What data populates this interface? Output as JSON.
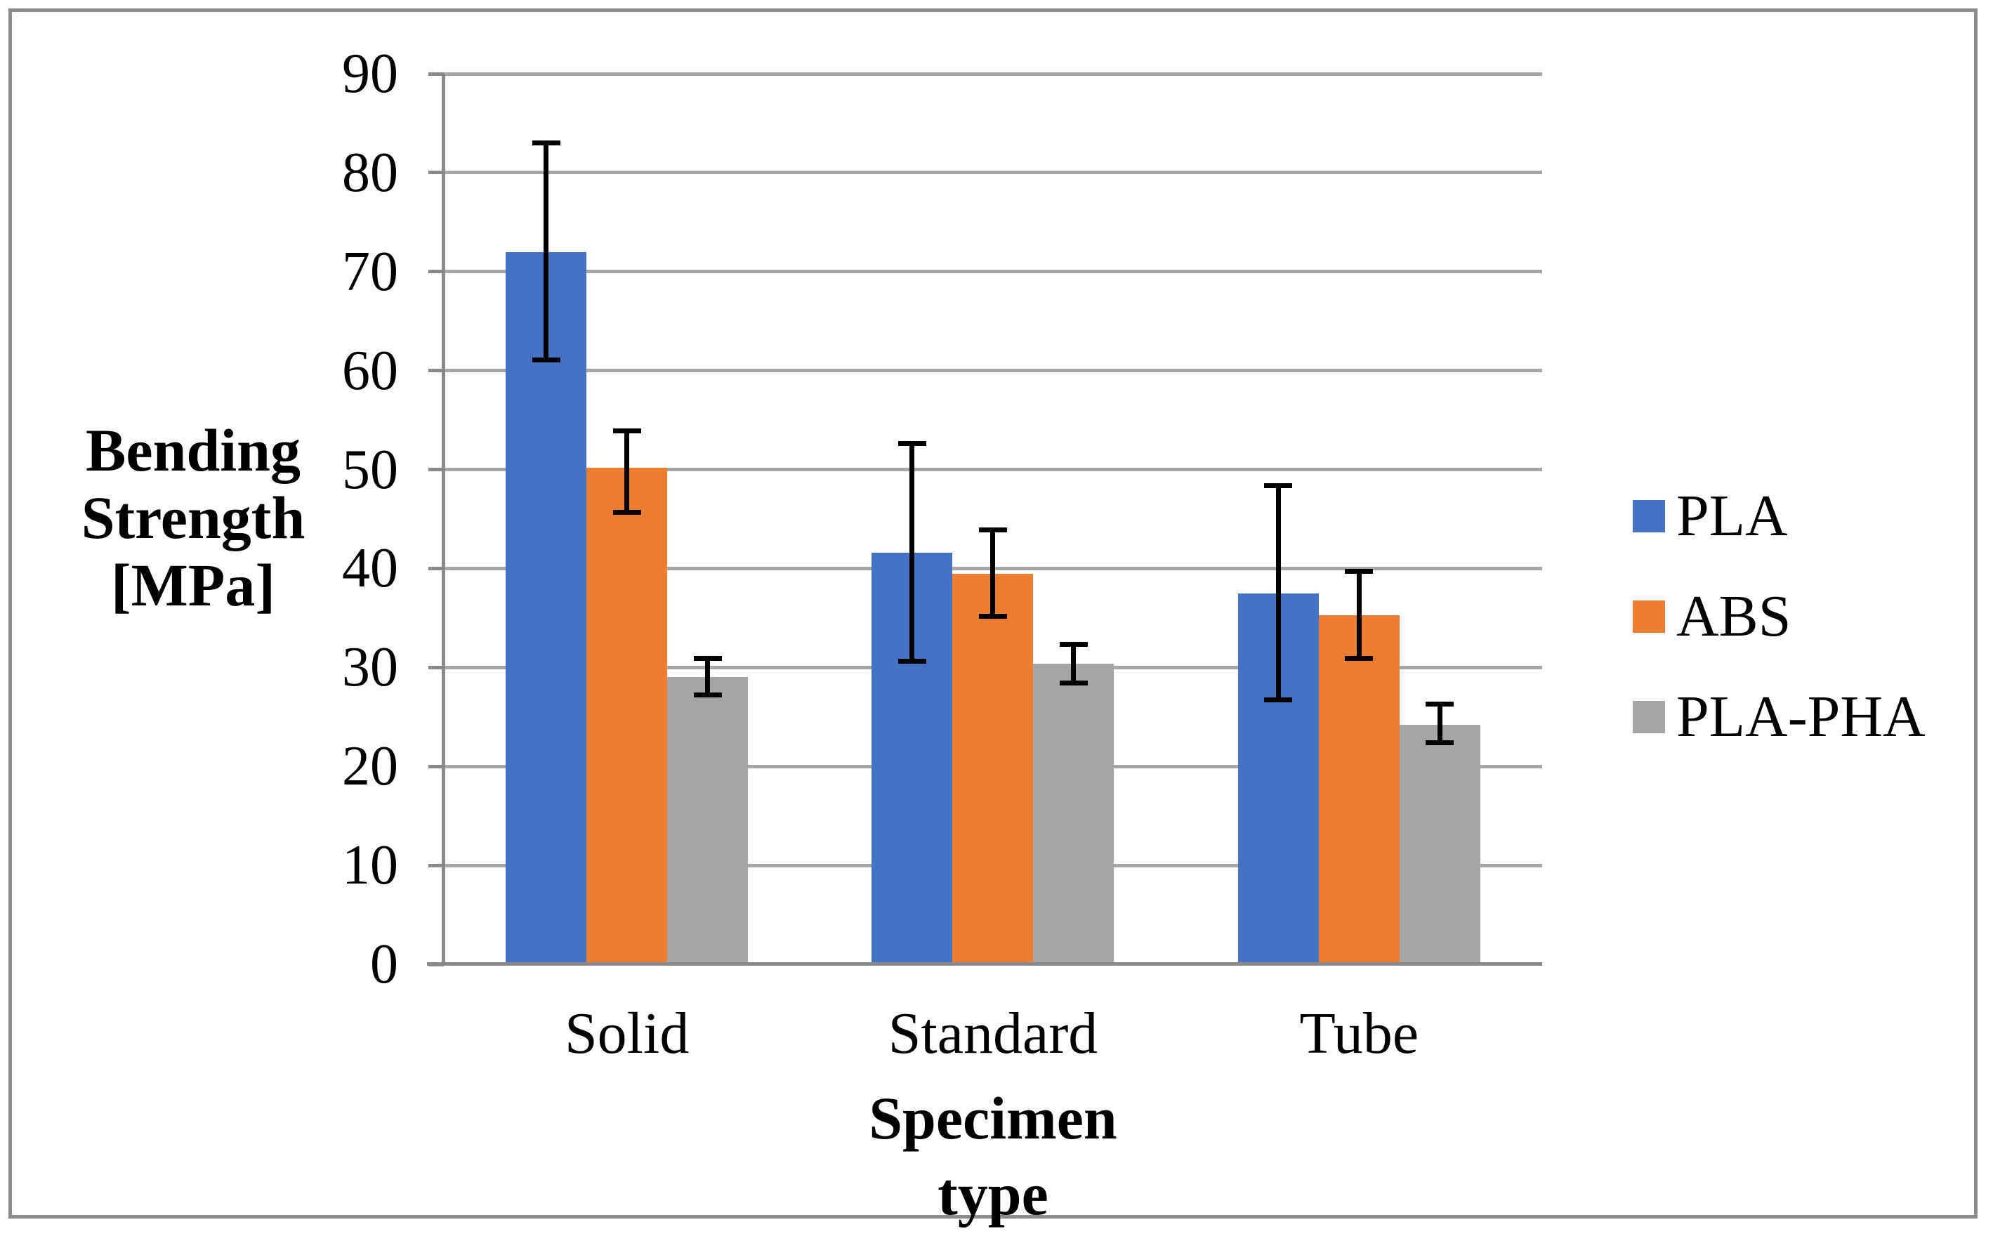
{
  "chart_data": {
    "type": "bar",
    "title": "",
    "xlabel": "Specimen type",
    "ylabel": "Bending Strength [MPa]",
    "ylabel_lines": [
      "Bending",
      "Strength",
      "[MPa]"
    ],
    "categories": [
      "Solid",
      "Standard",
      "Tube"
    ],
    "series": [
      {
        "name": "PLA",
        "color": "#4472C4",
        "values": [
          72.0,
          41.6,
          37.5
        ],
        "error_low": [
          61.1,
          30.6,
          26.7
        ],
        "error_high": [
          83.0,
          52.6,
          48.4
        ]
      },
      {
        "name": "ABS",
        "color": "#ED7D31",
        "values": [
          50.2,
          39.5,
          35.3
        ],
        "error_low": [
          45.7,
          35.2,
          30.9
        ],
        "error_high": [
          53.9,
          43.9,
          39.7
        ]
      },
      {
        "name": "PLA-PHA",
        "color": "#A5A5A5",
        "values": [
          29.0,
          30.4,
          24.2
        ],
        "error_low": [
          27.2,
          28.4,
          22.4
        ],
        "error_high": [
          30.9,
          32.3,
          26.3
        ]
      }
    ],
    "y_axis": {
      "min": 0,
      "max": 90,
      "step": 10,
      "tick_labels": [
        "0",
        "10",
        "20",
        "30",
        "40",
        "50",
        "60",
        "70",
        "80",
        "90"
      ]
    },
    "grid": "horizontal",
    "legend_position": "right",
    "error_bars": true
  },
  "colors": {
    "gridline": "#A6A6A6",
    "axis": "#898989",
    "frame": "#8C8C8C",
    "error_bar": "#000000",
    "text": "#000000",
    "background": "#FFFFFF"
  }
}
